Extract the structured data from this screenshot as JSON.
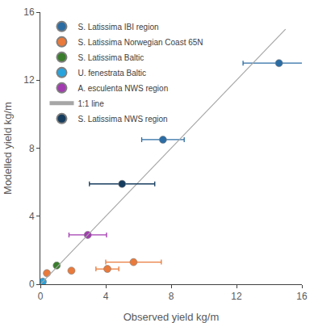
{
  "chart_data": {
    "type": "scatter",
    "xlabel": "Observed yield kg/m",
    "ylabel": "Modelled yield kg/m",
    "xlim": [
      0,
      16
    ],
    "ylim": [
      0,
      16
    ],
    "xticks": [
      0,
      4,
      8,
      12,
      16
    ],
    "yticks": [
      0,
      4,
      8,
      12,
      16
    ],
    "grid": false,
    "legend": "upper left",
    "series": [
      {
        "name": "S. Latissima IBI region",
        "color": "#2b6ca3",
        "marker": "circle",
        "x": [
          14.6,
          7.5
        ],
        "values": [
          13.0,
          8.5
        ],
        "x_error": [
          2.2,
          1.3
        ]
      },
      {
        "name": "S. Latissima Norwegian Coast 65N",
        "color": "#e97a3b",
        "marker": "circle",
        "x": [
          0.4,
          1.9,
          4.1,
          5.7
        ],
        "values": [
          0.65,
          0.8,
          0.9,
          1.3
        ],
        "x_error": [
          null,
          null,
          0.7,
          1.7
        ]
      },
      {
        "name": "S. Latissima Baltic",
        "color": "#3a7d2c",
        "marker": "circle",
        "x": [
          1.0
        ],
        "values": [
          1.1
        ],
        "x_error": [
          null
        ]
      },
      {
        "name": "U. fenestrata Baltic",
        "color": "#29a3dc",
        "marker": "circle",
        "x": [
          0.15
        ],
        "values": [
          0.15
        ],
        "x_error": [
          null
        ]
      },
      {
        "name": "A. esculenta NWS region",
        "color": "#a23bb0",
        "marker": "circle",
        "x": [
          2.9
        ],
        "values": [
          2.9
        ],
        "x_error": [
          1.15
        ]
      },
      {
        "name": "1:1 line",
        "type": "line",
        "color": "#a6a6a6",
        "x": [
          0,
          15
        ],
        "values": [
          0,
          15
        ]
      },
      {
        "name": "S. Latissima NWS region",
        "color": "#173d5e",
        "marker": "circle",
        "x": [
          5.0
        ],
        "values": [
          5.9
        ],
        "x_error": [
          2.0
        ]
      }
    ]
  }
}
